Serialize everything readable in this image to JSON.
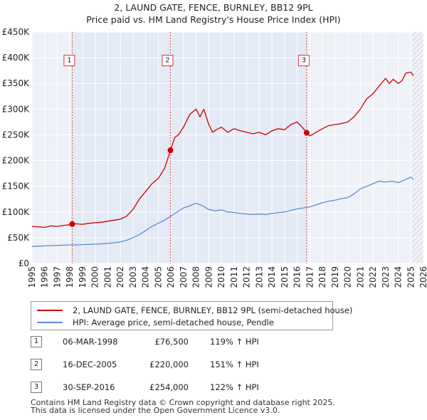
{
  "title_line1": "2, LAUND GATE, FENCE, BURNLEY, BB12 9PL",
  "title_line2": "Price paid vs. HM Land Registry's House Price Index (HPI)",
  "chart_data": {
    "type": "line",
    "title": "2, LAUND GATE, FENCE, BURNLEY, BB12 9PL — Price paid vs. HM Land Registry's House Price Index (HPI)",
    "xlim": [
      1995,
      2026
    ],
    "ylim": [
      0,
      450000
    ],
    "x_ticks": [
      1995,
      1996,
      1997,
      1998,
      1999,
      2000,
      2001,
      2002,
      2003,
      2004,
      2005,
      2006,
      2007,
      2008,
      2009,
      2010,
      2011,
      2012,
      2013,
      2014,
      2015,
      2016,
      2017,
      2018,
      2019,
      2020,
      2021,
      2022,
      2023,
      2024,
      2025,
      2026
    ],
    "y_ticks": [
      0,
      50000,
      100000,
      150000,
      200000,
      250000,
      300000,
      350000,
      400000,
      450000
    ],
    "y_tick_labels": [
      "£0",
      "£50K",
      "£100K",
      "£150K",
      "£200K",
      "£250K",
      "£300K",
      "£350K",
      "£400K",
      "£450K"
    ],
    "grid": true,
    "hatched_after": 2025.1,
    "series": [
      {
        "name": "2, LAUND GATE, FENCE, BURNLEY, BB12 9PL (semi-detached house)",
        "color": "#cc0000",
        "x": [
          1995.0,
          1995.5,
          1996.0,
          1996.5,
          1997.0,
          1997.5,
          1998.0,
          1998.18,
          1998.5,
          1999.0,
          1999.5,
          2000.0,
          2000.5,
          2001.0,
          2001.5,
          2002.0,
          2002.5,
          2003.0,
          2003.5,
          2004.0,
          2004.5,
          2005.0,
          2005.5,
          2005.96,
          2006.3,
          2006.6,
          2007.0,
          2007.5,
          2008.0,
          2008.3,
          2008.6,
          2009.0,
          2009.3,
          2009.6,
          2010.0,
          2010.5,
          2011.0,
          2011.5,
          2012.0,
          2012.5,
          2013.0,
          2013.5,
          2014.0,
          2014.5,
          2015.0,
          2015.5,
          2016.0,
          2016.5,
          2016.75,
          2017.0,
          2017.5,
          2018.0,
          2018.5,
          2019.0,
          2019.5,
          2020.0,
          2020.5,
          2021.0,
          2021.5,
          2022.0,
          2022.5,
          2023.0,
          2023.3,
          2023.6,
          2024.0,
          2024.3,
          2024.6,
          2025.0,
          2025.2
        ],
        "values": [
          72000,
          71000,
          70000,
          73000,
          72000,
          74000,
          75000,
          76500,
          77000,
          76000,
          78000,
          79000,
          80000,
          82000,
          84000,
          86000,
          92000,
          105000,
          125000,
          140000,
          155000,
          165000,
          185000,
          220000,
          245000,
          250000,
          265000,
          290000,
          300000,
          285000,
          300000,
          270000,
          255000,
          260000,
          265000,
          255000,
          262000,
          258000,
          255000,
          252000,
          255000,
          250000,
          258000,
          262000,
          260000,
          270000,
          275000,
          262000,
          254000,
          248000,
          255000,
          262000,
          268000,
          270000,
          272000,
          275000,
          285000,
          300000,
          320000,
          330000,
          345000,
          360000,
          350000,
          358000,
          350000,
          355000,
          370000,
          372000,
          365000
        ]
      },
      {
        "name": "HPI: Average price, semi-detached house, Pendle",
        "color": "#5b8fcf",
        "x": [
          1995.0,
          1995.5,
          1996.0,
          1996.5,
          1997.0,
          1997.5,
          1998.0,
          1998.5,
          1999.0,
          1999.5,
          2000.0,
          2000.5,
          2001.0,
          2001.5,
          2002.0,
          2002.5,
          2003.0,
          2003.5,
          2004.0,
          2004.5,
          2005.0,
          2005.5,
          2006.0,
          2006.5,
          2007.0,
          2007.5,
          2008.0,
          2008.5,
          2009.0,
          2009.5,
          2010.0,
          2010.5,
          2011.0,
          2011.5,
          2012.0,
          2012.5,
          2013.0,
          2013.5,
          2014.0,
          2014.5,
          2015.0,
          2015.5,
          2016.0,
          2016.5,
          2017.0,
          2017.5,
          2018.0,
          2018.5,
          2019.0,
          2019.5,
          2020.0,
          2020.5,
          2021.0,
          2021.5,
          2022.0,
          2022.5,
          2023.0,
          2023.5,
          2024.0,
          2024.5,
          2025.0,
          2025.2
        ],
        "values": [
          33000,
          33500,
          34000,
          34500,
          35000,
          35500,
          36000,
          36000,
          36500,
          37000,
          37500,
          38000,
          39000,
          40000,
          42000,
          45000,
          50000,
          56000,
          64000,
          72000,
          78000,
          84000,
          92000,
          100000,
          108000,
          112000,
          117000,
          112000,
          105000,
          102000,
          104000,
          100000,
          99000,
          97000,
          96000,
          95000,
          96000,
          95000,
          97000,
          99000,
          100000,
          103000,
          106000,
          108000,
          110000,
          114000,
          118000,
          121000,
          123000,
          126000,
          128000,
          135000,
          145000,
          150000,
          155000,
          160000,
          158000,
          160000,
          157000,
          162000,
          168000,
          163000
        ]
      }
    ],
    "sales": [
      {
        "label": "1",
        "x": 1998.18,
        "value": 76500
      },
      {
        "label": "2",
        "x": 2005.96,
        "value": 220000
      },
      {
        "label": "3",
        "x": 2016.75,
        "value": 254000
      }
    ]
  },
  "legend": {
    "property_label": "2, LAUND GATE, FENCE, BURNLEY, BB12 9PL (semi-detached house)",
    "hpi_label": "HPI: Average price, semi-detached house, Pendle"
  },
  "transactions": [
    {
      "num": "1",
      "date": "06-MAR-1998",
      "price": "£76,500",
      "hpi": "119% ↑ HPI"
    },
    {
      "num": "2",
      "date": "16-DEC-2005",
      "price": "£220,000",
      "hpi": "151% ↑ HPI"
    },
    {
      "num": "3",
      "date": "30-SEP-2016",
      "price": "£254,000",
      "hpi": "122% ↑ HPI"
    }
  ],
  "footer": {
    "line1": "Contains HM Land Registry data © Crown copyright and database right 2025.",
    "line2": "This data is licensed under the Open Government Licence v3.0."
  }
}
